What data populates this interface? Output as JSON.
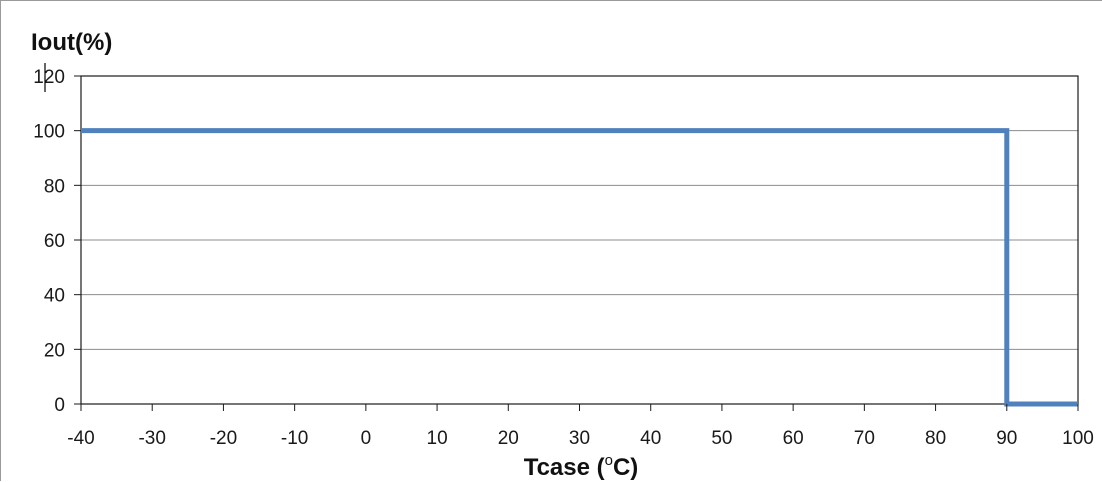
{
  "chart_data": {
    "type": "line",
    "title": "",
    "ylabel": "Iout(%)",
    "xlabel": "Tcase (",
    "xlabel_sup": "o",
    "xlabel_tail": "C)",
    "xlim": [
      -40,
      100
    ],
    "ylim": [
      0,
      120
    ],
    "x_ticks": [
      -40,
      -30,
      -20,
      -10,
      0,
      10,
      20,
      30,
      40,
      50,
      60,
      70,
      80,
      90,
      100
    ],
    "y_ticks": [
      0,
      20,
      40,
      60,
      80,
      100,
      120
    ],
    "grid": "horizontal",
    "legend": "none",
    "series": [
      {
        "color": "#4f81bd",
        "points": [
          {
            "x": -40,
            "y": 100
          },
          {
            "x": 90,
            "y": 100
          },
          {
            "x": 90,
            "y": 0
          },
          {
            "x": 100,
            "y": 0
          }
        ]
      }
    ]
  }
}
